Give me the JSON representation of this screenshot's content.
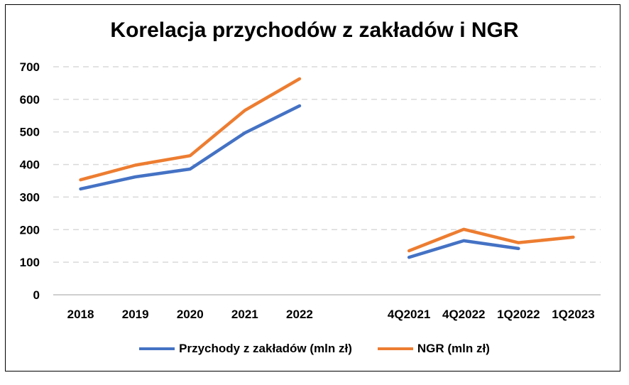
{
  "chart_data": {
    "type": "line",
    "title": "Korelacja przychodów z zakładów i NGR",
    "categories": [
      "2018",
      "2019",
      "2020",
      "2021",
      "2022",
      "",
      "4Q2021",
      "4Q2022",
      "1Q2022",
      "1Q2023"
    ],
    "ylim": [
      0,
      700
    ],
    "yticks": [
      "0",
      "100",
      "200",
      "300",
      "400",
      "500",
      "600",
      "700"
    ],
    "grid": "horizontal dashed",
    "legend_position": "bottom",
    "series": [
      {
        "name": "Przychody z zakładów (mln zł)",
        "color": "#4472C4",
        "values": [
          325,
          362,
          386,
          497,
          580,
          null,
          115,
          166,
          142,
          null
        ]
      },
      {
        "name": "NGR  (mln zł)",
        "color": "#ED7D31",
        "values": [
          353,
          398,
          427,
          566,
          663,
          null,
          135,
          201,
          160,
          177
        ]
      }
    ]
  }
}
